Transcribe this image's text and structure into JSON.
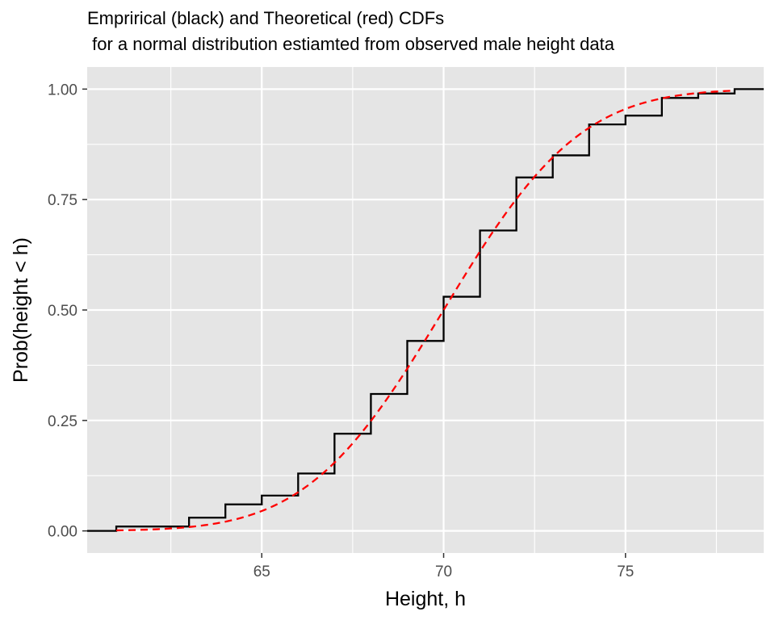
{
  "chart_data": {
    "type": "line",
    "title": "Emprirical (black) and Theoretical (red) CDFs",
    "subtitle": " for a normal distribution estiamted from observed male height data",
    "xlabel": "Height, h",
    "ylabel": "Prob(height < h)",
    "xlim": [
      60.2,
      78.8
    ],
    "ylim": [
      -0.05,
      1.05
    ],
    "x_ticks": [
      65,
      70,
      75
    ],
    "x_tick_labels": [
      "65",
      "70",
      "75"
    ],
    "x_minor_ticks": [
      62.5,
      67.5,
      72.5,
      77.5
    ],
    "y_ticks": [
      0.0,
      0.25,
      0.5,
      0.75,
      1.0
    ],
    "y_tick_labels": [
      "0.00",
      "0.25",
      "0.50",
      "0.75",
      "1.00"
    ],
    "y_minor_ticks": [
      0.125,
      0.375,
      0.625,
      0.875
    ],
    "grid": true,
    "legend": "none",
    "colors": {
      "panel_background": "#e5e5e5",
      "grid_line": "#ffffff",
      "empirical": "#000000",
      "theoretical": "#ff0000"
    },
    "series": [
      {
        "style": "step",
        "color": "#000000",
        "x": [
          60.2,
          61,
          63,
          64,
          65,
          66,
          67,
          68,
          69,
          70,
          71,
          72,
          73,
          74,
          75,
          76,
          77,
          78,
          78.8
        ],
        "y": [
          0.0,
          0.01,
          0.03,
          0.06,
          0.08,
          0.13,
          0.22,
          0.31,
          0.43,
          0.53,
          0.68,
          0.8,
          0.85,
          0.92,
          0.94,
          0.98,
          0.99,
          1.0,
          1.0
        ]
      },
      {
        "style": "dashed",
        "color": "#ff0000",
        "mean": 70.0,
        "sd": 2.95,
        "x_range": [
          61,
          78
        ]
      }
    ]
  }
}
